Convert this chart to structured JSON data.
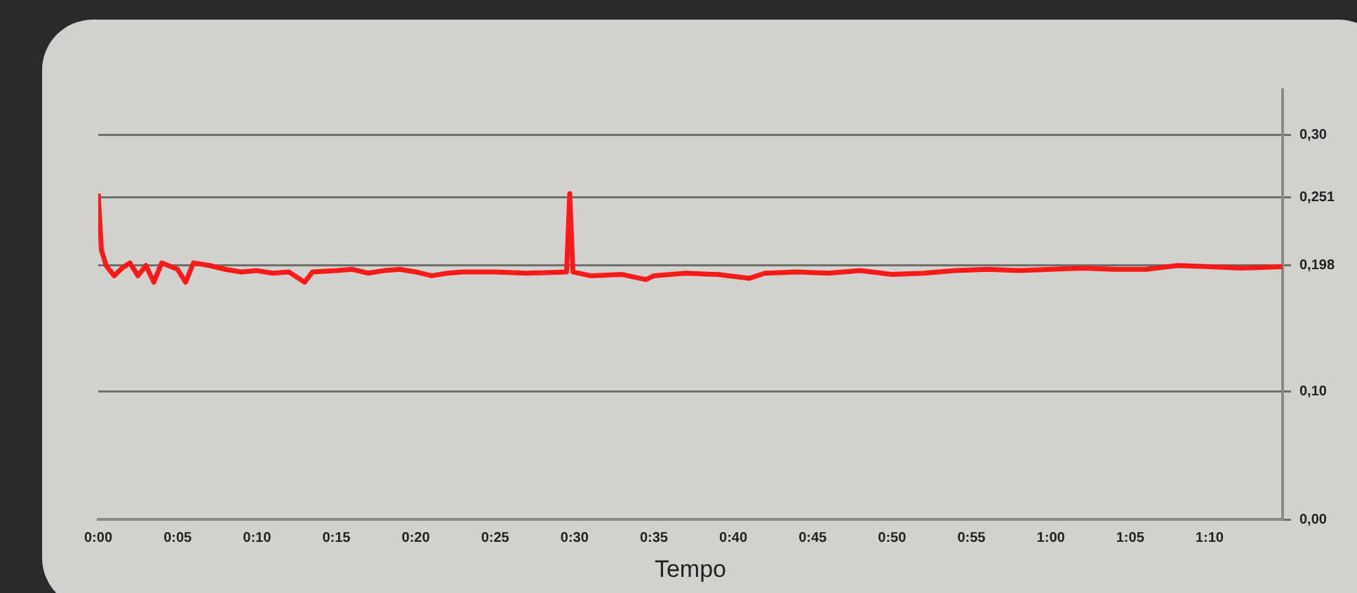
{
  "chart_data": {
    "type": "line",
    "xlabel": "Tempo",
    "x": [
      0,
      0.2,
      0.5,
      1,
      1.5,
      2,
      2.5,
      3,
      3.5,
      4,
      5,
      5.5,
      6,
      7,
      8,
      9,
      10,
      11,
      12,
      13,
      13.5,
      15,
      16,
      17,
      18,
      19,
      20,
      21,
      22,
      23,
      25,
      27,
      29.5,
      29.7,
      29.9,
      31,
      33,
      34.5,
      35,
      37,
      39,
      41,
      42,
      44,
      46,
      48,
      50,
      52,
      54,
      56,
      58,
      60,
      62,
      64,
      66,
      68,
      70,
      72,
      74.6
    ],
    "series": [
      {
        "color": "#ff1a1a",
        "values": [
          0.254,
          0.21,
          0.198,
          0.19,
          0.196,
          0.2,
          0.19,
          0.198,
          0.185,
          0.2,
          0.195,
          0.185,
          0.2,
          0.198,
          0.195,
          0.193,
          0.194,
          0.192,
          0.193,
          0.185,
          0.193,
          0.194,
          0.195,
          0.192,
          0.194,
          0.195,
          0.193,
          0.19,
          0.192,
          0.193,
          0.193,
          0.192,
          0.193,
          0.254,
          0.193,
          0.19,
          0.191,
          0.187,
          0.19,
          0.192,
          0.191,
          0.188,
          0.192,
          0.193,
          0.192,
          0.194,
          0.191,
          0.192,
          0.194,
          0.195,
          0.194,
          0.195,
          0.196,
          0.195,
          0.195,
          0.198,
          0.197,
          0.196,
          0.197
        ]
      }
    ],
    "xlim": [
      0,
      74.6
    ],
    "xticks": [
      {
        "value": 0,
        "label": "0:00"
      },
      {
        "value": 5,
        "label": "0:05"
      },
      {
        "value": 10,
        "label": "0:10"
      },
      {
        "value": 15,
        "label": "0:15"
      },
      {
        "value": 20,
        "label": "0:20"
      },
      {
        "value": 25,
        "label": "0:25"
      },
      {
        "value": 30,
        "label": "0:30"
      },
      {
        "value": 35,
        "label": "0:35"
      },
      {
        "value": 40,
        "label": "0:40"
      },
      {
        "value": 45,
        "label": "0:45"
      },
      {
        "value": 50,
        "label": "0:50"
      },
      {
        "value": 55,
        "label": "0:55"
      },
      {
        "value": 60,
        "label": "1:00"
      },
      {
        "value": 65,
        "label": "1:05"
      },
      {
        "value": 70,
        "label": "1:10"
      }
    ],
    "ylim": [
      0,
      0.335
    ],
    "yticks": [
      {
        "value": 0,
        "label": "0,00"
      },
      {
        "value": 0.1,
        "label": "0,10"
      },
      {
        "value": 0.198,
        "label": "0,198"
      },
      {
        "value": 0.251,
        "label": "0,251"
      },
      {
        "value": 0.3,
        "label": "0,30"
      }
    ],
    "grid": "y",
    "legend": false,
    "marker": "none",
    "line_style": "solid"
  }
}
